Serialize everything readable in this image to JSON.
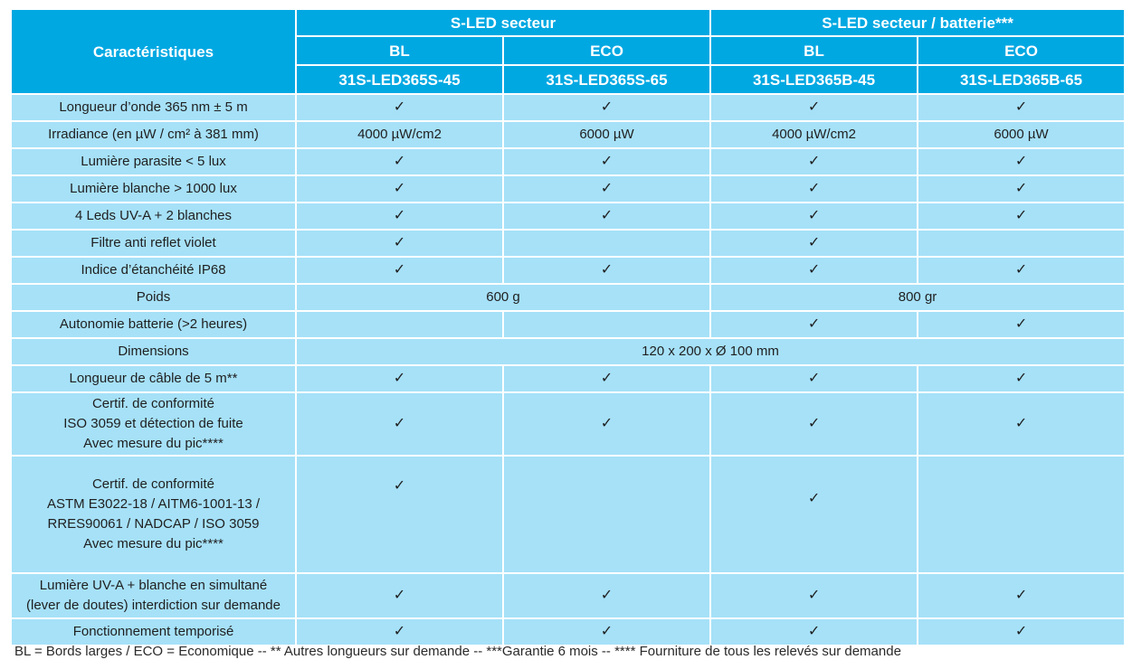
{
  "header": {
    "characteristics_label": "Caractéristiques",
    "group_secteur": "S-LED secteur",
    "group_secteur_batterie": "S-LED secteur / batterie***",
    "models": [
      {
        "type": "BL",
        "code": "31S-LED365S-45"
      },
      {
        "type": "ECO",
        "code": "31S-LED365S-65"
      },
      {
        "type": "BL",
        "code": "31S-LED365B-45"
      },
      {
        "type": "ECO",
        "code": "31S-LED365B-65"
      }
    ]
  },
  "rows": [
    {
      "label": "Longueur d’onde 365 nm ± 5 m",
      "cells": [
        "✓",
        "✓",
        "✓",
        "✓"
      ]
    },
    {
      "label": "Irradiance (en µW / cm² à 381 mm)",
      "cells": [
        "4000 µW/cm2",
        "6000 µW",
        "4000 µW/cm2",
        "6000 µW"
      ]
    },
    {
      "label": "Lumière parasite < 5 lux",
      "cells": [
        "✓",
        "✓",
        "✓",
        "✓"
      ]
    },
    {
      "label": "Lumière blanche > 1000 lux",
      "cells": [
        "✓",
        "✓",
        "✓",
        "✓"
      ]
    },
    {
      "label": "4 Leds UV-A + 2 blanches",
      "cells": [
        "✓",
        "✓",
        "✓",
        "✓"
      ]
    },
    {
      "label": "Filtre anti reflet violet",
      "cells": [
        "✓",
        "",
        "✓",
        ""
      ]
    },
    {
      "label": "Indice d’étanchéité IP68",
      "cells": [
        "✓",
        "✓",
        "✓",
        "✓"
      ]
    },
    {
      "label": "Poids",
      "merged_secteur": "600 g",
      "merged_batterie": "800 gr"
    },
    {
      "label": "Autonomie batterie (>2 heures)",
      "cells": [
        "",
        "",
        "✓",
        "✓"
      ]
    },
    {
      "label": "Dimensions",
      "merged_all": "120 x 200 x Ø 100 mm"
    },
    {
      "label": "Longueur de câble de 5 m**",
      "cells": [
        "✓",
        "✓",
        "✓",
        "✓"
      ]
    },
    {
      "label_lines": [
        "Certif. de conformité",
        "ISO 3059 et détection de fuite",
        "Avec mesure du pic****"
      ],
      "cells": [
        "✓",
        "✓",
        "✓",
        "✓"
      ]
    },
    {
      "label_lines": [
        "Certif. de conformité",
        "ASTM E3022-18 / AITM6-1001-13 /",
        "RRES90061 / NADCAP / ISO 3059",
        "Avec mesure du pic****"
      ],
      "cells": [
        "✓",
        "",
        "✓",
        ""
      ]
    },
    {
      "label_lines": [
        "Lumière UV-A + blanche en simultané",
        "(lever de doutes) interdiction sur demande"
      ],
      "cells": [
        "✓",
        "✓",
        "✓",
        "✓"
      ]
    },
    {
      "label": "Fonctionnement temporisé",
      "cells": [
        "✓",
        "✓",
        "✓",
        "✓"
      ]
    }
  ],
  "footnote": "BL = Bords larges / ECO = Economique -- ** Autres longueurs sur demande -- ***Garantie 6 mois -- **** Fourniture de tous les relevés sur demande"
}
